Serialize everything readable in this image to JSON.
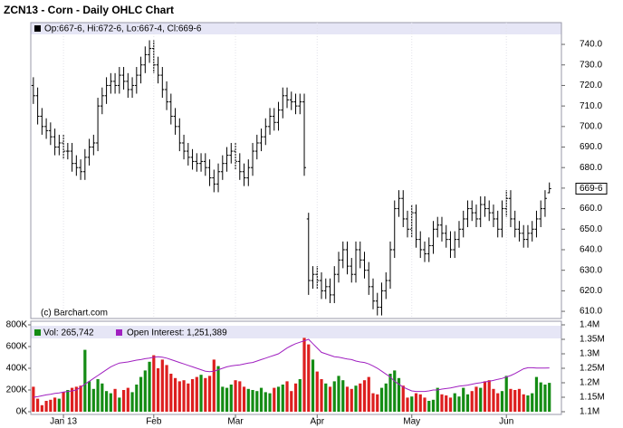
{
  "chart_data": [
    {
      "type": "ohlc",
      "title": "ZCN13 - Corn - Daily OHLC Chart",
      "header": "Op:667-6, Hi:672-6, Lo:667-4, Cl:669-6",
      "credit": "(c) Barchart.com",
      "last_label": "669-6",
      "color": "#000000",
      "xlim": [
        -0.6,
        122.8
      ],
      "ylim": [
        606.5,
        750.6
      ],
      "yticks": [
        {
          "value": 610,
          "label": "610.0"
        },
        {
          "value": 620,
          "label": "620.0"
        },
        {
          "value": 630,
          "label": "630.0"
        },
        {
          "value": 640,
          "label": "640.0"
        },
        {
          "value": 650,
          "label": "650.0"
        },
        {
          "value": 660,
          "label": "660.0"
        },
        {
          "value": 670,
          "label": "670.0"
        },
        {
          "value": 680,
          "label": "680.0"
        },
        {
          "value": 690,
          "label": "690.0"
        },
        {
          "value": 700,
          "label": "700.0"
        },
        {
          "value": 710,
          "label": "710.0"
        },
        {
          "value": 720,
          "label": "720.0"
        },
        {
          "value": 730,
          "label": "730.0"
        },
        {
          "value": 740,
          "label": "740.0"
        }
      ],
      "open": [
        720,
        715,
        705,
        700,
        698,
        695,
        690,
        692,
        688,
        688,
        682,
        680,
        678,
        685,
        690,
        692,
        710,
        715,
        720,
        722,
        720,
        725,
        722,
        718,
        720,
        725,
        730,
        735,
        738,
        730,
        725,
        718,
        712,
        705,
        700,
        692,
        688,
        685,
        683,
        682,
        683,
        680,
        675,
        672,
        678,
        682,
        686,
        688,
        683,
        678,
        675,
        680,
        688,
        692,
        695,
        700,
        705,
        702,
        708,
        715,
        713,
        712,
        710,
        712,
        655,
        625,
        628,
        625,
        620,
        622,
        618,
        628,
        635,
        640,
        632,
        628,
        640,
        635,
        630,
        622,
        615,
        612,
        620,
        625,
        640,
        660,
        665,
        655,
        650,
        658,
        645,
        640,
        638,
        642,
        650,
        652,
        648,
        645,
        640,
        645,
        650,
        655,
        660,
        658,
        655,
        662,
        660,
        658,
        655,
        650,
        660,
        665,
        655,
        650,
        648,
        645,
        648,
        650,
        655,
        660,
        667.75
      ],
      "high": [
        724,
        719,
        709,
        704,
        702,
        699,
        696,
        696,
        692,
        692,
        686,
        684,
        689,
        694,
        696,
        714,
        719,
        724,
        726,
        726,
        729,
        729,
        726,
        724,
        729,
        734,
        739,
        742,
        742,
        734,
        729,
        722,
        716,
        709,
        704,
        696,
        692,
        689,
        687,
        687,
        687,
        684,
        679,
        682,
        686,
        690,
        692,
        692,
        687,
        682,
        684,
        692,
        696,
        699,
        704,
        709,
        709,
        712,
        719,
        719,
        717,
        716,
        716,
        716,
        658,
        632,
        632,
        629,
        626,
        626,
        632,
        639,
        644,
        644,
        636,
        644,
        644,
        639,
        634,
        626,
        619,
        624,
        629,
        644,
        664,
        669,
        669,
        659,
        662,
        662,
        649,
        644,
        646,
        654,
        656,
        656,
        652,
        649,
        649,
        654,
        659,
        664,
        664,
        662,
        666,
        666,
        664,
        662,
        659,
        664,
        669,
        669,
        659,
        654,
        652,
        652,
        654,
        659,
        664,
        669,
        672.75
      ],
      "low": [
        711,
        701,
        696,
        694,
        691,
        686,
        686,
        684,
        684,
        678,
        676,
        674,
        674,
        681,
        686,
        688,
        706,
        711,
        716,
        716,
        716,
        718,
        714,
        714,
        716,
        721,
        726,
        731,
        726,
        721,
        714,
        708,
        701,
        696,
        688,
        684,
        681,
        679,
        678,
        678,
        676,
        671,
        668,
        668,
        674,
        678,
        682,
        679,
        674,
        671,
        671,
        676,
        684,
        688,
        691,
        696,
        698,
        698,
        704,
        709,
        708,
        706,
        706,
        676,
        618,
        621,
        621,
        616,
        616,
        614,
        614,
        624,
        631,
        628,
        624,
        624,
        631,
        626,
        618,
        611,
        608,
        608,
        616,
        621,
        636,
        656,
        651,
        646,
        646,
        641,
        636,
        634,
        634,
        638,
        646,
        644,
        641,
        636,
        636,
        641,
        646,
        651,
        654,
        651,
        651,
        656,
        654,
        651,
        646,
        646,
        656,
        651,
        646,
        644,
        641,
        641,
        644,
        646,
        651,
        656,
        667.5
      ],
      "close": [
        715,
        705,
        700,
        698,
        695,
        690,
        692,
        688,
        688,
        682,
        680,
        678,
        685,
        690,
        692,
        710,
        715,
        720,
        722,
        720,
        725,
        722,
        718,
        720,
        725,
        730,
        735,
        738,
        730,
        725,
        718,
        712,
        705,
        700,
        692,
        688,
        685,
        683,
        682,
        683,
        680,
        675,
        672,
        678,
        682,
        686,
        688,
        683,
        678,
        675,
        680,
        688,
        692,
        695,
        700,
        705,
        702,
        708,
        715,
        713,
        712,
        710,
        712,
        680,
        625,
        628,
        625,
        620,
        622,
        618,
        628,
        635,
        640,
        632,
        628,
        640,
        635,
        630,
        622,
        615,
        612,
        620,
        625,
        640,
        660,
        665,
        655,
        650,
        658,
        645,
        640,
        638,
        642,
        650,
        652,
        648,
        645,
        640,
        645,
        650,
        655,
        660,
        658,
        655,
        662,
        660,
        658,
        655,
        650,
        660,
        665,
        655,
        650,
        648,
        645,
        648,
        650,
        655,
        660,
        665,
        669.75
      ]
    },
    {
      "type": "volume",
      "xlim": [
        -0.6,
        122.8
      ],
      "ylim": [
        0,
        800000
      ],
      "y2lim": [
        1100000,
        1400000
      ],
      "xticks": [
        {
          "value": 7,
          "label": "Jan 13"
        },
        {
          "value": 28,
          "label": "Feb"
        },
        {
          "value": 47,
          "label": "Mar"
        },
        {
          "value": 66,
          "label": "Apr"
        },
        {
          "value": 88,
          "label": "May"
        },
        {
          "value": 110,
          "label": "Jun"
        }
      ],
      "yticks": [
        {
          "value": 0,
          "label": "0K"
        },
        {
          "value": 200000,
          "label": "200K"
        },
        {
          "value": 400000,
          "label": "400K"
        },
        {
          "value": 600000,
          "label": "600K"
        },
        {
          "value": 800000,
          "label": "800K"
        }
      ],
      "y2ticks": [
        {
          "value": 1100000,
          "label": "1.1M"
        },
        {
          "value": 1150000,
          "label": "1.15M"
        },
        {
          "value": 1200000,
          "label": "1.2M"
        },
        {
          "value": 1250000,
          "label": "1.25M"
        },
        {
          "value": 1300000,
          "label": "1.3M"
        },
        {
          "value": 1350000,
          "label": "1.35M"
        },
        {
          "value": 1400000,
          "label": "1.4M"
        }
      ],
      "series": [
        {
          "name": "Vol: 265,742",
          "color": "#148c14",
          "up_color": "#148c14",
          "down_color": "#dd1f1f",
          "values": [
            230000,
            120000,
            60000,
            100000,
            110000,
            130000,
            120000,
            180000,
            200000,
            220000,
            230000,
            240000,
            570000,
            280000,
            210000,
            300000,
            260000,
            190000,
            170000,
            210000,
            130000,
            200000,
            220000,
            180000,
            250000,
            320000,
            380000,
            460000,
            520000,
            400000,
            480000,
            430000,
            350000,
            310000,
            280000,
            290000,
            260000,
            300000,
            320000,
            340000,
            310000,
            330000,
            480000,
            420000,
            230000,
            220000,
            250000,
            290000,
            280000,
            230000,
            210000,
            200000,
            190000,
            220000,
            180000,
            170000,
            220000,
            230000,
            250000,
            280000,
            190000,
            260000,
            300000,
            680000,
            620000,
            480000,
            370000,
            300000,
            260000,
            230000,
            280000,
            330000,
            290000,
            230000,
            210000,
            240000,
            260000,
            290000,
            320000,
            170000,
            160000,
            220000,
            260000,
            350000,
            380000,
            310000,
            240000,
            130000,
            140000,
            170000,
            160000,
            130000,
            100000,
            110000,
            220000,
            160000,
            150000,
            130000,
            170000,
            140000,
            220000,
            160000,
            190000,
            230000,
            220000,
            280000,
            290000,
            210000,
            170000,
            190000,
            330000,
            210000,
            200000,
            210000,
            160000,
            150000,
            170000,
            320000,
            270000,
            250000,
            265742
          ]
        },
        {
          "name": "Open Interest: 1,251,389",
          "color": "#a020c0",
          "axis": "y2",
          "values": [
            1150000,
            1152000,
            1155000,
            1158000,
            1160000,
            1163000,
            1165000,
            1168000,
            1170000,
            1172000,
            1175000,
            1185000,
            1195000,
            1205000,
            1215000,
            1225000,
            1235000,
            1245000,
            1255000,
            1262000,
            1268000,
            1270000,
            1272000,
            1275000,
            1278000,
            1280000,
            1283000,
            1285000,
            1288000,
            1290000,
            1288000,
            1285000,
            1280000,
            1275000,
            1270000,
            1265000,
            1260000,
            1255000,
            1250000,
            1245000,
            1240000,
            1238000,
            1240000,
            1245000,
            1250000,
            1255000,
            1258000,
            1260000,
            1262000,
            1265000,
            1268000,
            1270000,
            1275000,
            1280000,
            1285000,
            1290000,
            1295000,
            1300000,
            1310000,
            1320000,
            1328000,
            1335000,
            1340000,
            1345000,
            1350000,
            1335000,
            1320000,
            1305000,
            1300000,
            1295000,
            1290000,
            1288000,
            1285000,
            1282000,
            1280000,
            1275000,
            1272000,
            1270000,
            1265000,
            1258000,
            1250000,
            1240000,
            1230000,
            1220000,
            1205000,
            1195000,
            1185000,
            1178000,
            1172000,
            1170000,
            1170000,
            1170000,
            1172000,
            1175000,
            1175000,
            1178000,
            1180000,
            1182000,
            1185000,
            1188000,
            1190000,
            1192000,
            1195000,
            1198000,
            1200000,
            1203000,
            1205000,
            1208000,
            1212000,
            1215000,
            1220000,
            1225000,
            1232000,
            1240000,
            1248000,
            1252000,
            1252000,
            1251000,
            1251000,
            1251000,
            1251389
          ]
        }
      ]
    }
  ]
}
